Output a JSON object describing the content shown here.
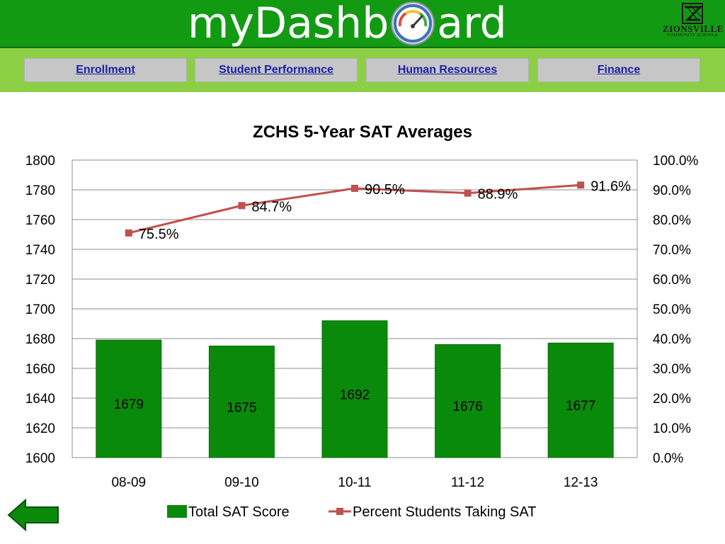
{
  "header": {
    "brand_left": "myDashb",
    "brand_right": "ard",
    "logo_name": "ZIONSVILLE",
    "logo_sub": "COMMUNITY SCHOOLS"
  },
  "nav": {
    "tabs": [
      {
        "label": "Enrollment"
      },
      {
        "label": "Student Performance"
      },
      {
        "label": "Human Resources"
      },
      {
        "label": "Finance"
      }
    ]
  },
  "icons": {
    "gauge": "gauge-icon",
    "logo": "zionsville-logo-icon",
    "back": "back-arrow-icon"
  },
  "colors": {
    "header_bg": "#139a13",
    "nav_bg": "#8ccf45",
    "bar": "#0a8a0a",
    "line": "#c0504d"
  },
  "chart_data": {
    "type": "bar",
    "title": "ZCHS 5-Year SAT Averages",
    "categories": [
      "08-09",
      "09-10",
      "10-11",
      "11-12",
      "12-13"
    ],
    "series": [
      {
        "name": "Total SAT Score",
        "type": "bar",
        "axis": "left",
        "values": [
          1679,
          1675,
          1692,
          1676,
          1677
        ],
        "labels": [
          "1679",
          "1675",
          "1692",
          "1676",
          "1677"
        ]
      },
      {
        "name": "Percent Students Taking SAT",
        "type": "line",
        "axis": "right",
        "values": [
          75.5,
          84.7,
          90.5,
          88.9,
          91.6
        ],
        "labels": [
          "75.5%",
          "84.7%",
          "90.5%",
          "88.9%",
          "91.6%"
        ]
      }
    ],
    "y_left": {
      "range": [
        1600,
        1800
      ],
      "ticks": [
        "1600",
        "1620",
        "1640",
        "1660",
        "1680",
        "1700",
        "1720",
        "1740",
        "1760",
        "1780",
        "1800"
      ]
    },
    "y_right": {
      "range": [
        0,
        100
      ],
      "ticks": [
        "0.0%",
        "10.0%",
        "20.0%",
        "30.0%",
        "40.0%",
        "50.0%",
        "60.0%",
        "70.0%",
        "80.0%",
        "90.0%",
        "100.0%"
      ]
    },
    "grid": true,
    "legend": "bottom"
  }
}
